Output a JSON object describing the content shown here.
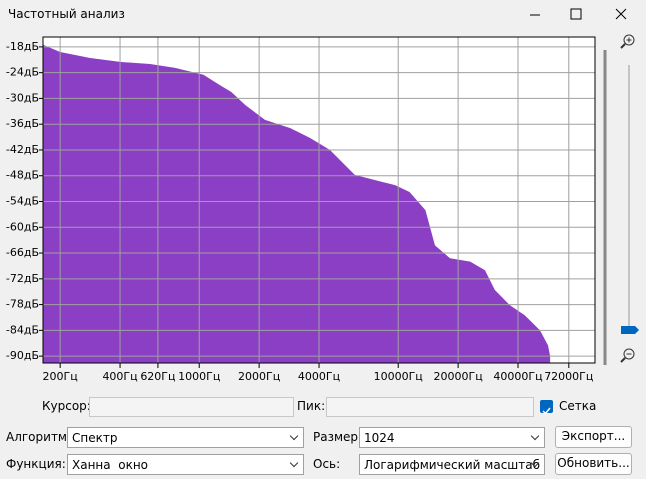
{
  "window": {
    "title": "Частотный анализ"
  },
  "chart_data": {
    "type": "area",
    "color": "#8a3fc4",
    "grid": true,
    "log_x": true,
    "x": [
      164,
      200,
      283,
      400,
      566,
      756,
      1050,
      1270,
      1450,
      1700,
      2140,
      2860,
      3600,
      4540,
      6050,
      7620,
      9640,
      11400,
      13700,
      15300,
      18200,
      23000,
      27300,
      30600,
      36300,
      43300,
      51600,
      56600,
      58000
    ],
    "values": [
      -17.5,
      -19.2,
      -20.6,
      -21.5,
      -22,
      -22.9,
      -24.5,
      -26.9,
      -28.5,
      -31.5,
      -35,
      -36.9,
      -39.2,
      -42,
      -47.8,
      -49,
      -50.2,
      -51.8,
      -56,
      -64.2,
      -67.2,
      -68,
      -70,
      -74.6,
      -78.1,
      -80.5,
      -84,
      -87.5,
      -90
    ],
    "xlim": [
      164,
      97500
    ],
    "ylim": [
      -91.6,
      -15.7
    ],
    "xticks": [
      {
        "value": 200,
        "label": "200Гц"
      },
      {
        "value": 400,
        "label": "400Гц"
      },
      {
        "value": 620,
        "label": "620Гц"
      },
      {
        "value": 1000,
        "label": "1000Гц"
      },
      {
        "value": 2000,
        "label": "2000Гц"
      },
      {
        "value": 4000,
        "label": "4000Гц"
      },
      {
        "value": 10000,
        "label": "10000Гц"
      },
      {
        "value": 20000,
        "label": "20000Гц"
      },
      {
        "value": 40000,
        "label": "40000Гц"
      },
      {
        "value": 72000,
        "label": "72000Гц"
      }
    ],
    "yticks": [
      {
        "value": -18,
        "label": "-18дБ"
      },
      {
        "value": -24,
        "label": "-24дБ"
      },
      {
        "value": -30,
        "label": "-30дБ"
      },
      {
        "value": -36,
        "label": "-36дБ"
      },
      {
        "value": -42,
        "label": "-42дБ"
      },
      {
        "value": -48,
        "label": "-48дБ"
      },
      {
        "value": -54,
        "label": "-54дБ"
      },
      {
        "value": -60,
        "label": "-60дБ"
      },
      {
        "value": -66,
        "label": "-66дБ"
      },
      {
        "value": -72,
        "label": "-72дБ"
      },
      {
        "value": -78,
        "label": "-78дБ"
      },
      {
        "value": -84,
        "label": "-84дБ"
      },
      {
        "value": -90,
        "label": "-90дБ"
      }
    ]
  },
  "controls": {
    "cursor_label": "Курсор:",
    "peak_label": "Пик:",
    "grid_label": "Сетка",
    "grid_checked": true,
    "algorithm_label": "Алгоритм:",
    "algorithm": "Спектр",
    "size_label": "Размер:",
    "size": "1024",
    "export_button": "Экспорт...",
    "function_label": "Функция:",
    "function": "Ханна  окно",
    "axis_label": "Ось:",
    "axis": "Логарифмический масштаб",
    "refresh_button": "Обновить..."
  }
}
